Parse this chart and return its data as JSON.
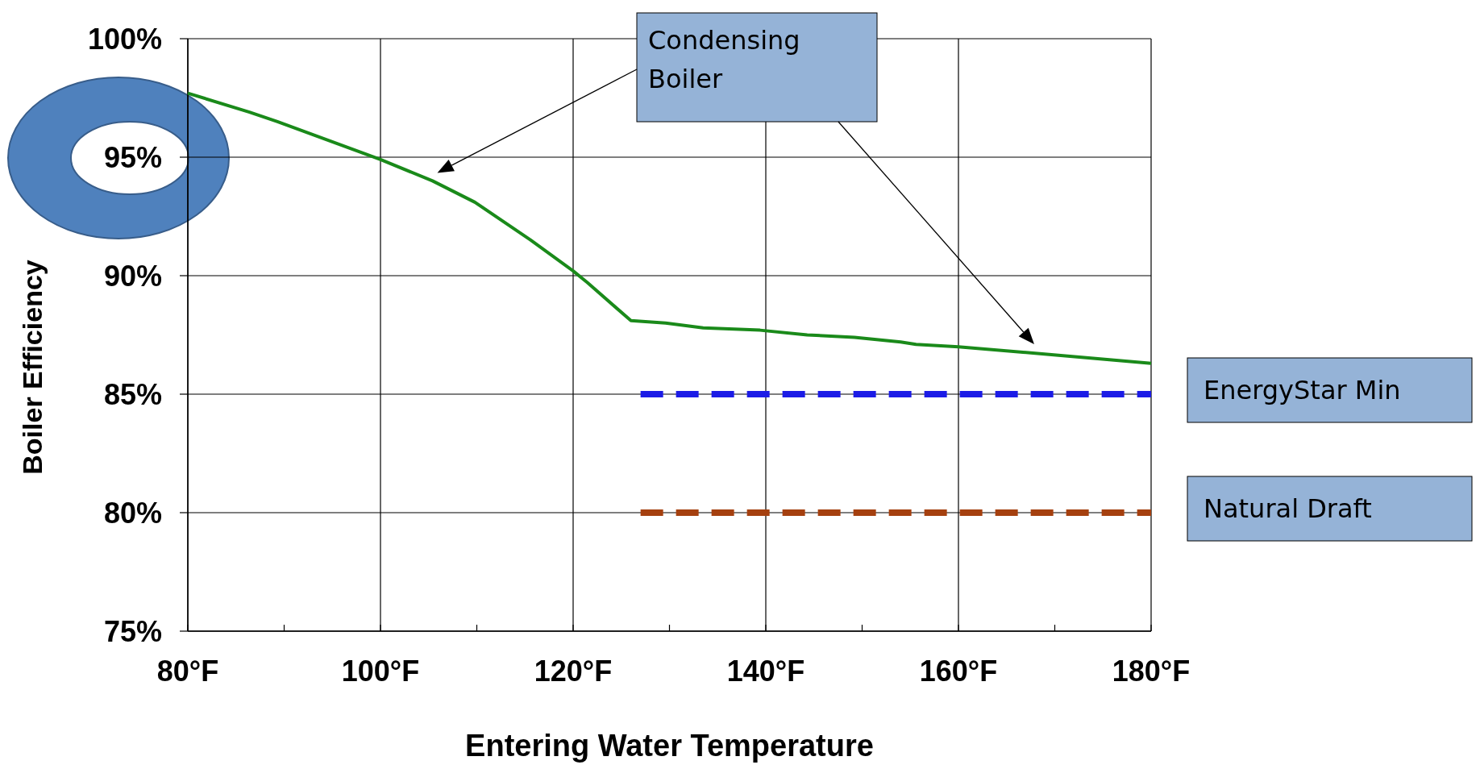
{
  "chart_data": {
    "type": "line",
    "xlabel": "Entering Water Temperature",
    "ylabel": "Boiler Efficiency",
    "xlim": [
      80,
      180
    ],
    "ylim": [
      75,
      100
    ],
    "xticks": [
      {
        "value": 80,
        "label": "80°F"
      },
      {
        "value": 90,
        "label": null
      },
      {
        "value": 100,
        "label": "100°F"
      },
      {
        "value": 110,
        "label": null
      },
      {
        "value": 120,
        "label": "120°F"
      },
      {
        "value": 130,
        "label": null
      },
      {
        "value": 140,
        "label": "140°F"
      },
      {
        "value": 150,
        "label": null
      },
      {
        "value": 160,
        "label": "160°F"
      },
      {
        "value": 170,
        "label": null
      },
      {
        "value": 180,
        "label": "180°F"
      }
    ],
    "yticks": [
      {
        "value": 75,
        "label": "75%"
      },
      {
        "value": 80,
        "label": "80%"
      },
      {
        "value": 85,
        "label": "85%"
      },
      {
        "value": 90,
        "label": "90%"
      },
      {
        "value": 95,
        "label": "95%"
      },
      {
        "value": 100,
        "label": "100%"
      }
    ],
    "grid": true,
    "series": [
      {
        "name": "Condensing Boiler",
        "color": "#1a8a1a",
        "line_style": "solid",
        "x": [
          80,
          86.4,
          89.3,
          100,
          105.4,
          109.8,
          115.6,
          120,
          121.5,
          126,
          129.6,
          133.5,
          139.4,
          144.3,
          149.2,
          154,
          155.6,
          160,
          168.7,
          180
        ],
        "values": [
          97.7,
          96.9,
          96.5,
          94.9,
          94,
          93.1,
          91.5,
          90.2,
          89.7,
          88.1,
          88,
          87.8,
          87.7,
          87.5,
          87.4,
          87.2,
          87.1,
          87,
          86.7,
          86.3
        ]
      },
      {
        "name": "EnergyStar Min",
        "color": "#1c1ce6",
        "line_style": "dashed",
        "x": [
          127,
          180
        ],
        "values": [
          85,
          85
        ]
      },
      {
        "name": "Natural Draft",
        "color": "#a5400f",
        "line_style": "dashed",
        "x": [
          127,
          180
        ],
        "values": [
          80,
          80
        ]
      }
    ]
  }
}
